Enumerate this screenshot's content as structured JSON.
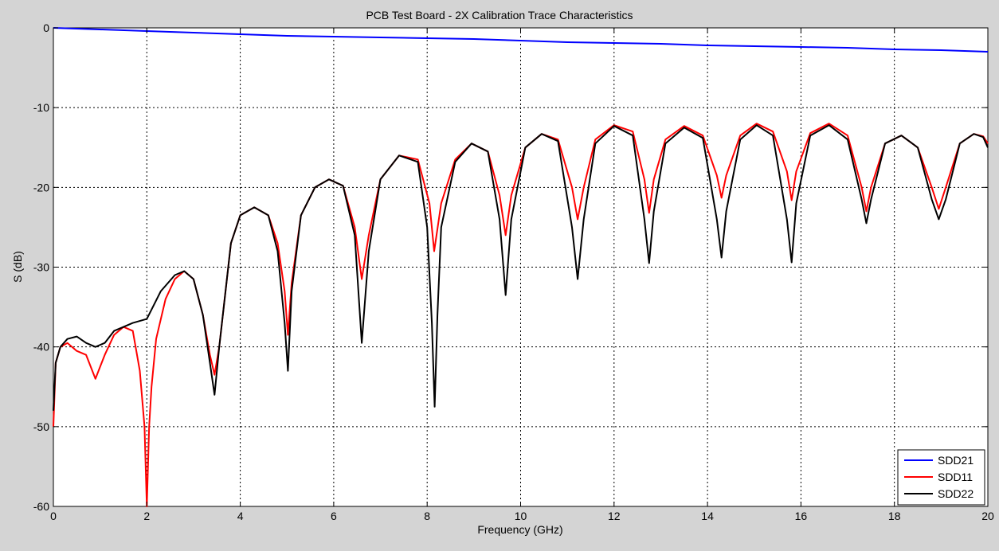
{
  "chart_data": {
    "type": "line",
    "title": "PCB Test Board - 2X Calibration Trace Characteristics",
    "xlabel": "Frequency (GHz)",
    "ylabel": "S (dB)",
    "xlim": [
      0,
      20
    ],
    "ylim": [
      -60,
      0
    ],
    "xticks": [
      0,
      2,
      4,
      6,
      8,
      10,
      12,
      14,
      16,
      18,
      20
    ],
    "yticks": [
      0,
      -10,
      -20,
      -30,
      -40,
      -50,
      -60
    ],
    "grid": true,
    "legend_position": "bottom-right",
    "series": [
      {
        "name": "SDD21",
        "color": "#0000ff",
        "x": [
          0,
          1,
          2,
          3,
          4,
          5,
          6,
          7,
          8,
          9,
          10,
          11,
          12,
          13,
          14,
          15,
          16,
          17,
          18,
          19,
          20
        ],
        "y": [
          0,
          -0.2,
          -0.4,
          -0.6,
          -0.8,
          -1.0,
          -1.1,
          -1.2,
          -1.3,
          -1.4,
          -1.6,
          -1.8,
          -1.9,
          -2.0,
          -2.2,
          -2.3,
          -2.4,
          -2.5,
          -2.7,
          -2.8,
          -3.0
        ]
      },
      {
        "name": "SDD11",
        "color": "#ff0000",
        "x": [
          0,
          0.05,
          0.15,
          0.3,
          0.5,
          0.7,
          0.9,
          1.1,
          1.3,
          1.5,
          1.7,
          1.85,
          1.95,
          2.0,
          2.05,
          2.1,
          2.2,
          2.4,
          2.6,
          2.8,
          3.0,
          3.2,
          3.35,
          3.45,
          3.55,
          3.8,
          4.0,
          4.3,
          4.6,
          4.8,
          4.95,
          5.02,
          5.1,
          5.3,
          5.6,
          5.9,
          6.2,
          6.45,
          6.6,
          6.75,
          7.0,
          7.4,
          7.8,
          8.05,
          8.15,
          8.3,
          8.6,
          8.95,
          9.3,
          9.55,
          9.68,
          9.8,
          10.1,
          10.45,
          10.8,
          11.1,
          11.22,
          11.35,
          11.6,
          12.0,
          12.4,
          12.65,
          12.75,
          12.85,
          13.1,
          13.5,
          13.9,
          14.2,
          14.3,
          14.4,
          14.7,
          15.05,
          15.4,
          15.7,
          15.8,
          15.9,
          16.2,
          16.6,
          17.0,
          17.3,
          17.4,
          17.5,
          17.8,
          18.15,
          18.5,
          18.8,
          18.95,
          19.1,
          19.4,
          19.7,
          19.9,
          20.0
        ],
        "y": [
          -50,
          -42,
          -40,
          -39.5,
          -40.5,
          -41,
          -44,
          -41,
          -38.5,
          -37.5,
          -38,
          -43,
          -50,
          -60,
          -50,
          -45,
          -39,
          -34,
          -31.5,
          -30.5,
          -31.5,
          -36,
          -41,
          -43.5,
          -40,
          -27,
          -23.5,
          -22.5,
          -23.5,
          -27,
          -33,
          -38.5,
          -32,
          -23.5,
          -20,
          -19,
          -19.8,
          -25,
          -31.5,
          -26,
          -19,
          -16,
          -16.5,
          -22,
          -28,
          -22,
          -16.5,
          -14.5,
          -15.5,
          -21,
          -26,
          -21,
          -15,
          -13.3,
          -14,
          -20,
          -24,
          -20,
          -14,
          -12.2,
          -13,
          -19,
          -23.2,
          -19,
          -14,
          -12.3,
          -13.5,
          -18.5,
          -21.3,
          -18.5,
          -13.5,
          -12,
          -13,
          -18,
          -21.6,
          -18,
          -13.2,
          -12,
          -13.5,
          -20,
          -23,
          -20,
          -14.5,
          -13.5,
          -15,
          -20,
          -22.7,
          -20,
          -14.5,
          -13.3,
          -13.6,
          -14.5
        ]
      },
      {
        "name": "SDD22",
        "color": "#000000",
        "x": [
          0,
          0.05,
          0.15,
          0.3,
          0.5,
          0.7,
          0.9,
          1.1,
          1.3,
          1.5,
          1.7,
          2.0,
          2.3,
          2.6,
          2.8,
          3.0,
          3.2,
          3.35,
          3.45,
          3.55,
          3.8,
          4.0,
          4.3,
          4.6,
          4.8,
          4.95,
          5.02,
          5.1,
          5.3,
          5.6,
          5.9,
          6.2,
          6.45,
          6.6,
          6.75,
          7.0,
          7.4,
          7.8,
          8.0,
          8.1,
          8.16,
          8.22,
          8.3,
          8.6,
          8.95,
          9.3,
          9.55,
          9.68,
          9.8,
          10.1,
          10.45,
          10.8,
          11.1,
          11.22,
          11.35,
          11.6,
          12.0,
          12.4,
          12.65,
          12.75,
          12.85,
          13.1,
          13.5,
          13.9,
          14.2,
          14.3,
          14.4,
          14.7,
          15.05,
          15.4,
          15.7,
          15.8,
          15.9,
          16.2,
          16.6,
          17.0,
          17.3,
          17.4,
          17.5,
          17.8,
          18.15,
          18.5,
          18.8,
          18.95,
          19.1,
          19.4,
          19.7,
          19.9,
          20.0
        ],
        "y": [
          -48,
          -42,
          -40,
          -39,
          -38.7,
          -39.5,
          -40,
          -39.5,
          -38,
          -37.5,
          -37,
          -36.5,
          -33,
          -31,
          -30.5,
          -31.5,
          -36,
          -42,
          -46,
          -40,
          -27,
          -23.5,
          -22.5,
          -23.5,
          -28,
          -37,
          -43,
          -33,
          -23.5,
          -20,
          -19,
          -19.8,
          -26,
          -39.5,
          -28,
          -19,
          -16,
          -16.8,
          -25,
          -37,
          -47.5,
          -36,
          -25,
          -16.8,
          -14.5,
          -15.5,
          -24,
          -33.5,
          -24,
          -15,
          -13.3,
          -14.2,
          -25,
          -31.5,
          -24,
          -14.5,
          -12.3,
          -13.5,
          -24,
          -29.5,
          -23,
          -14.5,
          -12.5,
          -13.8,
          -24,
          -28.8,
          -23,
          -14,
          -12.2,
          -13.5,
          -24,
          -29.4,
          -22,
          -13.5,
          -12.2,
          -14,
          -21.5,
          -24.5,
          -21.5,
          -14.5,
          -13.5,
          -15,
          -21.5,
          -24,
          -21.5,
          -14.5,
          -13.3,
          -13.7,
          -15
        ]
      }
    ]
  }
}
